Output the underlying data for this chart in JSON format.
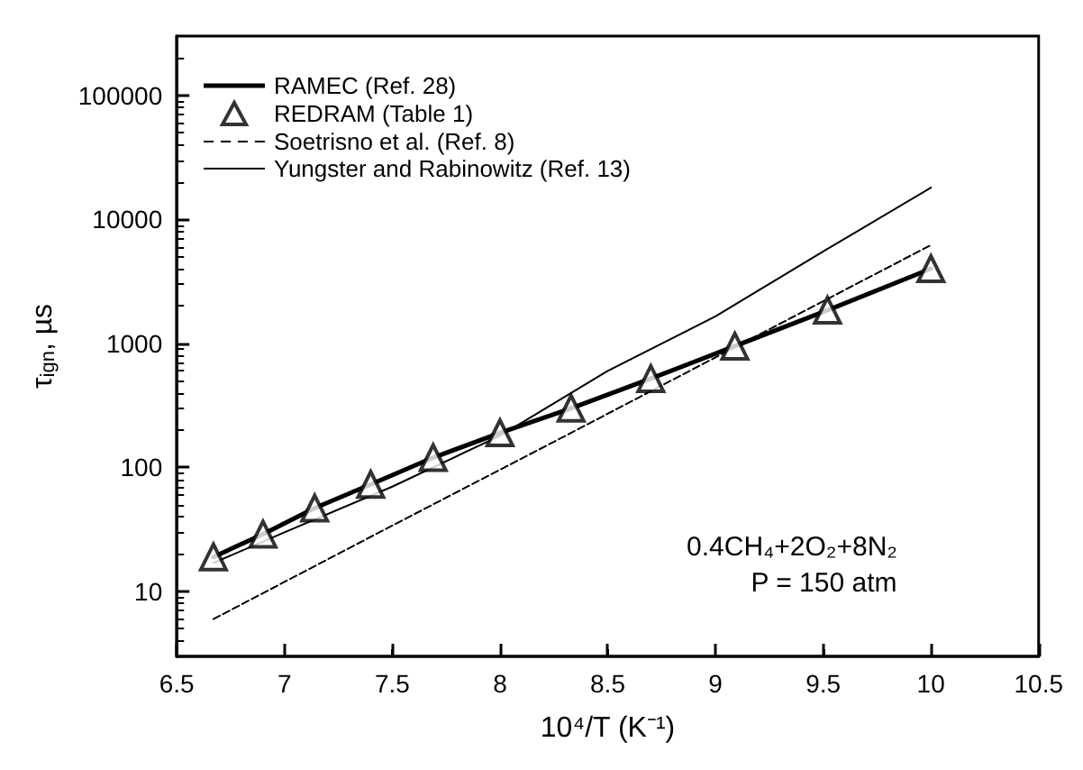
{
  "chart_data": {
    "type": "line",
    "xlabel": "10⁴/T (K⁻¹)",
    "ylabel": "τ$_{ign}$, µs",
    "log": "y",
    "grid": false,
    "legend": "top left",
    "xlim": [
      6.5,
      10.5
    ],
    "xticks": [
      6.5,
      7.0,
      7.5,
      8.0,
      8.5,
      9.0,
      9.5,
      10.0,
      10.5
    ],
    "ylim": [
      3,
      300000
    ],
    "yticks": [
      10,
      100,
      1000,
      10000,
      100000
    ],
    "annotations": [
      "0.4CH₄+2O₂+8N₂",
      "P = 150 atm"
    ],
    "series": [
      {
        "name": "RAMEC (Ref. 28)",
        "type": "line",
        "color": "#000000",
        "line_style": "solid",
        "marker": "none",
        "x": [
          6.67,
          6.9,
          7.14,
          7.4,
          7.69,
          8.0,
          8.33,
          8.7,
          9.09,
          9.52,
          10.0
        ],
        "values": [
          19,
          29,
          47,
          73,
          120,
          190,
          300,
          520,
          950,
          1850,
          4000
        ]
      },
      {
        "name": "REDRAM (Table 1)",
        "type": "scatter",
        "color": "#000000",
        "marker": "triangle",
        "x": [
          6.67,
          6.9,
          7.14,
          7.4,
          7.69,
          8.0,
          8.33,
          8.7,
          9.09,
          9.52,
          10.0
        ],
        "values": [
          19,
          29,
          47,
          73,
          120,
          190,
          300,
          520,
          950,
          1850,
          4000
        ]
      },
      {
        "name": "Soetrisno et al. (Ref. 8)",
        "type": "line",
        "color": "#000000",
        "line_style": "dashed",
        "marker": "none",
        "x": [
          6.67,
          7.5,
          8.33,
          9.17,
          10.0
        ],
        "values": [
          6,
          34,
          190,
          1100,
          6200
        ]
      },
      {
        "name": "Yungster and Rabinowitz (Ref. 13)",
        "type": "line",
        "color": "#000000",
        "line_style": "solid",
        "marker": "none",
        "x": [
          6.67,
          7.0,
          7.5,
          8.0,
          8.5,
          9.0,
          9.5,
          10.0
        ],
        "values": [
          17,
          30,
          70,
          180,
          600,
          1650,
          5500,
          18000
        ]
      }
    ]
  }
}
